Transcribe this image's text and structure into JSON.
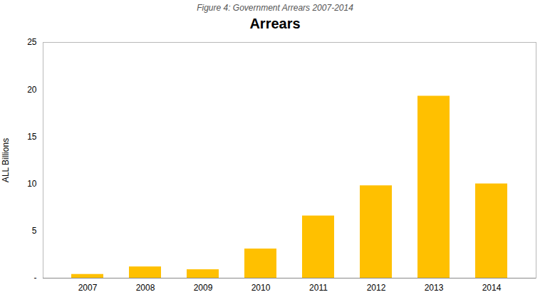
{
  "chart_data": {
    "type": "bar",
    "title": "Arrears",
    "subtitle": "Figure 4: Government Arrears 2007-2014",
    "categories": [
      "2007",
      "2008",
      "2009",
      "2010",
      "2011",
      "2012",
      "2013",
      "2014"
    ],
    "values": [
      0.4,
      1.2,
      0.9,
      3.1,
      6.6,
      9.8,
      19.3,
      10.0
    ],
    "color": "#FFC000",
    "ylabel": "ALL Billions",
    "ylim": [
      0,
      25
    ],
    "yticks": [
      {
        "value": 0,
        "label": "-"
      },
      5,
      10,
      15,
      20,
      25
    ],
    "grid": false
  }
}
